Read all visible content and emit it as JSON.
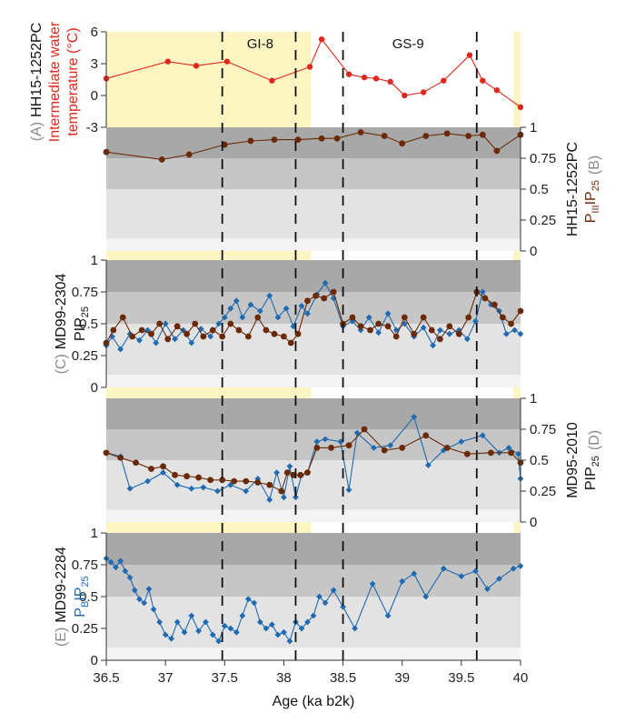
{
  "chart_data": {
    "type": "line",
    "xlabel": "Age (ka b2k)",
    "xlim": [
      36.5,
      40.0
    ],
    "xticks": [
      "36.5",
      "37",
      "37.5",
      "38",
      "38.5",
      "39",
      "39.5",
      "40"
    ],
    "xtick_values": [
      36.5,
      37.0,
      37.5,
      38.0,
      38.5,
      39.0,
      39.5,
      40.0
    ],
    "event_labels": [
      "GI-8",
      "GS-9"
    ],
    "dashed_lines_x": [
      37.48,
      38.1,
      38.5,
      39.63
    ],
    "yellow_shading_x": [
      [
        36.5,
        38.23
      ],
      [
        39.94,
        40.0
      ]
    ],
    "colors": {
      "red": "#e0281e",
      "brown": "#6a2a08",
      "blue": "#1f6ab0",
      "gray_label": "#8a8a8a",
      "yellow": "#fdf6c2"
    },
    "sea_ice_bands": [
      {
        "range": [
          0.75,
          1.0
        ],
        "color": "#a8a8a8"
      },
      {
        "range": [
          0.5,
          0.75
        ],
        "color": "#c6c6c6"
      },
      {
        "range": [
          0.1,
          0.5
        ],
        "color": "#e3e3e3"
      },
      {
        "range": [
          0.0,
          0.1
        ],
        "color": "#f4f4f4"
      }
    ],
    "panels": [
      {
        "id": "A",
        "letter": "(A)",
        "site": "HH15-1252PC",
        "ylabel": "Intermediate water temperature (°C)",
        "ylabel_lines": [
          "Intermediate water",
          "temperature (°C)"
        ],
        "ylim": [
          -3,
          6
        ],
        "yticks": [
          "-3",
          "0",
          "3",
          "6"
        ],
        "ytick_values": [
          -3,
          0,
          3,
          6
        ],
        "axis_side": "left",
        "series": [
          {
            "color": "red",
            "marker": "circle",
            "x": [
              36.5,
              37.02,
              37.26,
              37.52,
              37.9,
              38.22,
              38.32,
              38.55,
              38.68,
              38.78,
              38.9,
              39.02,
              39.18,
              39.35,
              39.57,
              39.68,
              39.8,
              40.0
            ],
            "y": [
              1.6,
              3.2,
              2.8,
              3.2,
              1.4,
              2.7,
              5.3,
              2.0,
              1.7,
              1.6,
              1.3,
              0.0,
              0.3,
              1.4,
              3.8,
              1.4,
              0.5,
              -1.1
            ]
          }
        ]
      },
      {
        "id": "B",
        "letter": "(B)",
        "site": "HH15-1252PC",
        "ylabel": "PIIIIP25",
        "ylabel_parts": [
          "P",
          "III",
          "IP",
          "25"
        ],
        "ylim": [
          0,
          1
        ],
        "yticks": [
          "0",
          "0.25",
          "0.5",
          "0.75",
          "1"
        ],
        "ytick_values": [
          0,
          0.25,
          0.5,
          0.75,
          1
        ],
        "axis_side": "right",
        "series": [
          {
            "color": "brown",
            "marker": "circle",
            "x": [
              36.5,
              36.97,
              37.2,
              37.5,
              37.72,
              37.92,
              38.12,
              38.32,
              38.45,
              38.65,
              38.85,
              39.0,
              39.2,
              39.38,
              39.56,
              39.68,
              39.8,
              40.0
            ],
            "y": [
              0.8,
              0.74,
              0.78,
              0.86,
              0.89,
              0.9,
              0.9,
              0.91,
              0.91,
              0.96,
              0.93,
              0.87,
              0.93,
              0.95,
              0.93,
              0.94,
              0.81,
              0.94
            ]
          }
        ]
      },
      {
        "id": "C",
        "letter": "(C)",
        "site": "MD99-2304",
        "ylabel": "PIP25",
        "ylabel_parts": [
          "PIP",
          "25"
        ],
        "ylim": [
          0,
          1
        ],
        "yticks": [
          "0",
          "0.25",
          "0.5",
          "0.75",
          "1"
        ],
        "ytick_values": [
          0,
          0.25,
          0.5,
          0.75,
          1
        ],
        "axis_side": "left",
        "series": [
          {
            "color": "blue",
            "marker": "diamond",
            "x": [
              36.5,
              36.55,
              36.62,
              36.7,
              36.78,
              36.85,
              36.92,
              37.0,
              37.08,
              37.15,
              37.22,
              37.3,
              37.38,
              37.45,
              37.5,
              37.55,
              37.6,
              37.65,
              37.72,
              37.8,
              37.88,
              37.95,
              38.02,
              38.08,
              38.15,
              38.2,
              38.28,
              38.35,
              38.42,
              38.5,
              38.58,
              38.65,
              38.72,
              38.8,
              38.88,
              38.95,
              39.02,
              39.1,
              39.18,
              39.26,
              39.32,
              39.4,
              39.48,
              39.55,
              39.62,
              39.68,
              39.75,
              39.82,
              39.88,
              39.95,
              40.0
            ],
            "y": [
              0.33,
              0.4,
              0.3,
              0.42,
              0.37,
              0.45,
              0.35,
              0.5,
              0.38,
              0.45,
              0.35,
              0.46,
              0.4,
              0.5,
              0.55,
              0.62,
              0.68,
              0.55,
              0.65,
              0.6,
              0.72,
              0.55,
              0.62,
              0.48,
              0.64,
              0.58,
              0.73,
              0.82,
              0.7,
              0.48,
              0.52,
              0.45,
              0.55,
              0.43,
              0.58,
              0.45,
              0.5,
              0.4,
              0.47,
              0.33,
              0.45,
              0.42,
              0.45,
              0.38,
              0.52,
              0.75,
              0.65,
              0.6,
              0.42,
              0.45,
              0.42
            ]
          },
          {
            "color": "brown",
            "marker": "circle",
            "x": [
              36.5,
              36.56,
              36.64,
              36.72,
              36.8,
              36.88,
              36.95,
              37.02,
              37.1,
              37.18,
              37.25,
              37.32,
              37.4,
              37.48,
              37.55,
              37.62,
              37.7,
              37.78,
              37.85,
              37.92,
              38.0,
              38.06,
              38.12,
              38.2,
              38.27,
              38.34,
              38.42,
              38.5,
              38.58,
              38.65,
              38.73,
              38.8,
              38.88,
              38.95,
              39.02,
              39.1,
              39.18,
              39.25,
              39.32,
              39.4,
              39.48,
              39.56,
              39.63,
              39.7,
              39.78,
              39.85,
              39.92,
              40.0
            ],
            "y": [
              0.35,
              0.45,
              0.55,
              0.4,
              0.45,
              0.42,
              0.5,
              0.38,
              0.48,
              0.42,
              0.5,
              0.4,
              0.45,
              0.4,
              0.5,
              0.45,
              0.4,
              0.55,
              0.45,
              0.42,
              0.4,
              0.35,
              0.42,
              0.68,
              0.72,
              0.7,
              0.75,
              0.5,
              0.55,
              0.48,
              0.45,
              0.5,
              0.48,
              0.4,
              0.55,
              0.42,
              0.55,
              0.45,
              0.38,
              0.48,
              0.42,
              0.55,
              0.75,
              0.7,
              0.65,
              0.55,
              0.5,
              0.6
            ]
          }
        ]
      },
      {
        "id": "D",
        "letter": "(D)",
        "site": "MD95-2010",
        "ylabel": "PIP25",
        "ylabel_parts": [
          "PIP",
          "25"
        ],
        "ylim": [
          0,
          1
        ],
        "yticks": [
          "0",
          "0.25",
          "0.5",
          "0.75",
          "1"
        ],
        "ytick_values": [
          0,
          0.25,
          0.5,
          0.75,
          1
        ],
        "axis_side": "right",
        "series": [
          {
            "color": "blue",
            "marker": "diamond",
            "x": [
              36.5,
              36.62,
              36.7,
              36.85,
              36.98,
              37.1,
              37.22,
              37.32,
              37.44,
              37.55,
              37.68,
              37.78,
              37.88,
              37.94,
              38.0,
              38.05,
              38.1,
              38.15,
              38.2,
              38.28,
              38.35,
              38.48,
              38.55,
              38.62,
              38.76,
              38.9,
              39.1,
              39.22,
              39.35,
              39.5,
              39.68,
              39.82,
              39.9,
              39.98,
              40.0
            ],
            "y": [
              0.56,
              0.53,
              0.27,
              0.33,
              0.4,
              0.3,
              0.27,
              0.28,
              0.25,
              0.3,
              0.25,
              0.35,
              0.18,
              0.4,
              0.2,
              0.45,
              0.2,
              0.38,
              0.4,
              0.65,
              0.67,
              0.65,
              0.26,
              0.72,
              0.6,
              0.62,
              0.85,
              0.46,
              0.58,
              0.65,
              0.7,
              0.56,
              0.6,
              0.55,
              0.35
            ]
          },
          {
            "color": "brown",
            "marker": "circle",
            "x": [
              36.5,
              36.62,
              36.75,
              36.88,
              36.98,
              37.08,
              37.18,
              37.28,
              37.38,
              37.48,
              37.58,
              37.68,
              37.78,
              37.88,
              37.98,
              38.03,
              38.08,
              38.14,
              38.2,
              38.28,
              38.4,
              38.55,
              38.68,
              38.85,
              39.0,
              39.2,
              39.38,
              39.55,
              39.75,
              39.92,
              40.0
            ],
            "y": [
              0.56,
              0.52,
              0.48,
              0.43,
              0.45,
              0.38,
              0.37,
              0.36,
              0.34,
              0.34,
              0.33,
              0.33,
              0.32,
              0.3,
              0.25,
              0.4,
              0.38,
              0.38,
              0.4,
              0.6,
              0.6,
              0.62,
              0.75,
              0.58,
              0.6,
              0.7,
              0.6,
              0.55,
              0.56,
              0.56,
              0.48
            ]
          }
        ]
      },
      {
        "id": "E",
        "letter": "(E)",
        "site": "MD99-2284",
        "ylabel": "PBIP25",
        "ylabel_parts": [
          "P",
          "B",
          "IP",
          "25"
        ],
        "ylim": [
          0,
          1
        ],
        "yticks": [
          "0",
          "0.25",
          "0.5",
          "0.75",
          "1"
        ],
        "ytick_values": [
          0,
          0.25,
          0.5,
          0.75,
          1
        ],
        "axis_side": "left",
        "series": [
          {
            "color": "blue",
            "marker": "diamond",
            "x": [
              36.5,
              36.54,
              36.58,
              36.62,
              36.66,
              36.7,
              36.74,
              36.78,
              36.82,
              36.86,
              36.9,
              36.95,
              37.0,
              37.05,
              37.1,
              37.16,
              37.22,
              37.28,
              37.34,
              37.4,
              37.45,
              37.5,
              37.55,
              37.6,
              37.65,
              37.7,
              37.75,
              37.8,
              37.85,
              37.9,
              37.95,
              38.0,
              38.05,
              38.1,
              38.15,
              38.2,
              38.25,
              38.3,
              38.35,
              38.42,
              38.5,
              38.6,
              38.75,
              38.88,
              39.0,
              39.1,
              39.2,
              39.35,
              39.5,
              39.62,
              39.72,
              39.82,
              39.94,
              40.0
            ],
            "y": [
              0.8,
              0.77,
              0.73,
              0.78,
              0.7,
              0.65,
              0.55,
              0.48,
              0.45,
              0.56,
              0.4,
              0.3,
              0.2,
              0.17,
              0.3,
              0.22,
              0.35,
              0.23,
              0.3,
              0.2,
              0.15,
              0.27,
              0.25,
              0.22,
              0.35,
              0.48,
              0.45,
              0.3,
              0.25,
              0.28,
              0.2,
              0.22,
              0.15,
              0.3,
              0.25,
              0.3,
              0.35,
              0.5,
              0.45,
              0.55,
              0.42,
              0.25,
              0.6,
              0.35,
              0.62,
              0.68,
              0.5,
              0.72,
              0.66,
              0.7,
              0.56,
              0.64,
              0.72,
              0.74
            ]
          }
        ]
      }
    ]
  }
}
